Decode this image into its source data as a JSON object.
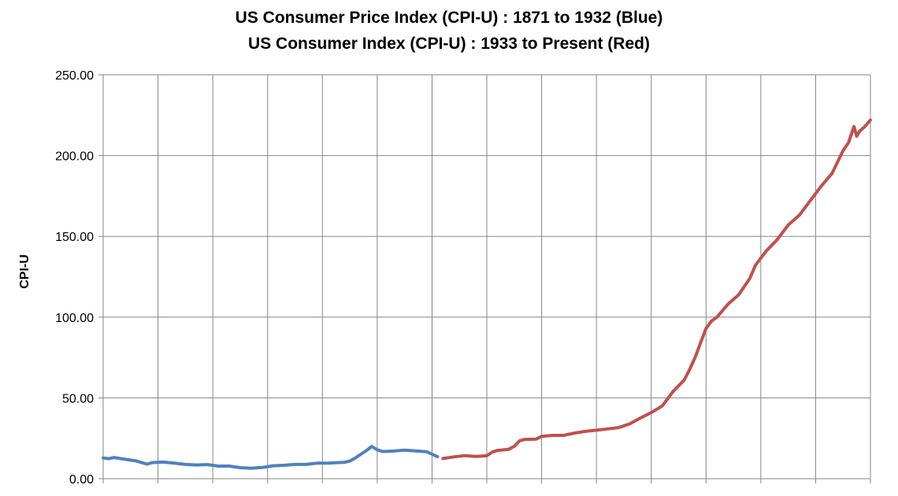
{
  "chart_data": {
    "type": "line",
    "title": "US Consumer Price Index (CPI-U) : 1871 to 1932 (Blue)",
    "subtitle": "US Consumer Index (CPI-U) : 1933 to Present (Red)",
    "xlabel": "",
    "ylabel": "CPI-U",
    "ylim": [
      0,
      250
    ],
    "yticks": [
      "0.00",
      "50.00",
      "100.00",
      "150.00",
      "200.00",
      "250.00"
    ],
    "xlim": [
      1871,
      2011
    ],
    "grid": true,
    "legend": "none",
    "series": [
      {
        "color": "#4F81BD",
        "x": [
          1871,
          1872,
          1873,
          1875,
          1877,
          1879,
          1880,
          1882,
          1884,
          1886,
          1888,
          1890,
          1892,
          1894,
          1896,
          1898,
          1900,
          1902,
          1904,
          1906,
          1908,
          1910,
          1912,
          1914,
          1915,
          1916,
          1917,
          1918,
          1919,
          1920,
          1921,
          1922,
          1924,
          1926,
          1928,
          1930,
          1931,
          1932
        ],
        "y": [
          12.8,
          12.4,
          13.1,
          12.0,
          11.0,
          9.0,
          10.0,
          10.3,
          9.6,
          8.8,
          8.5,
          8.7,
          7.8,
          7.8,
          6.8,
          6.5,
          6.9,
          8.0,
          8.3,
          8.8,
          8.8,
          9.6,
          9.6,
          10.0,
          10.1,
          10.9,
          12.8,
          15.1,
          17.3,
          20.0,
          17.9,
          16.8,
          17.1,
          17.7,
          17.2,
          16.7,
          15.2,
          13.6
        ]
      },
      {
        "color": "#C0504D",
        "x": [
          1933,
          1935,
          1937,
          1939,
          1941,
          1942,
          1943,
          1945,
          1946,
          1947,
          1948,
          1950,
          1951,
          1953,
          1955,
          1957,
          1959,
          1961,
          1963,
          1965,
          1967,
          1969,
          1971,
          1973,
          1974,
          1975,
          1977,
          1978,
          1979,
          1980,
          1981,
          1982,
          1983,
          1985,
          1987,
          1989,
          1990,
          1992,
          1994,
          1996,
          1998,
          2000,
          2002,
          2004,
          2005,
          2006,
          2007,
          2008,
          2008.5,
          2009,
          2010,
          2011
        ],
        "y": [
          12.5,
          13.5,
          14.3,
          13.8,
          14.2,
          16.5,
          17.5,
          18.2,
          20.0,
          23.5,
          24.3,
          24.5,
          26.2,
          26.8,
          26.8,
          28.2,
          29.3,
          30.0,
          30.8,
          31.6,
          33.8,
          37.5,
          40.9,
          45.0,
          49.5,
          54.0,
          61.0,
          67.5,
          75.0,
          84.0,
          93.0,
          97.5,
          100.0,
          108.0,
          114.0,
          124.0,
          132.0,
          141.0,
          148.0,
          157.0,
          163.0,
          172.0,
          181.0,
          189.0,
          196.0,
          203.0,
          208.0,
          218.0,
          212.0,
          215.0,
          218.0,
          222.0
        ]
      }
    ]
  }
}
